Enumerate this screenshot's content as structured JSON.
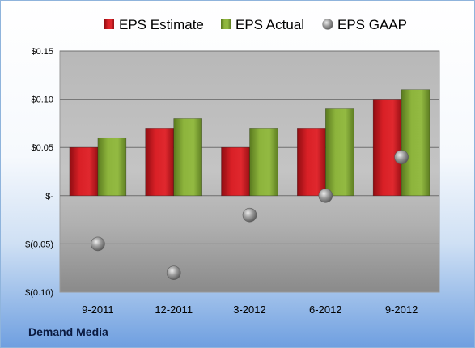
{
  "chart_data": {
    "type": "bar",
    "categories": [
      "9-2011",
      "12-2011",
      "3-2012",
      "6-2012",
      "9-2012"
    ],
    "series": [
      {
        "name": "EPS Estimate",
        "kind": "bar",
        "values": [
          0.05,
          0.07,
          0.05,
          0.07,
          0.1
        ],
        "color": "#c8171d"
      },
      {
        "name": "EPS Actual",
        "kind": "bar",
        "values": [
          0.06,
          0.08,
          0.07,
          0.09,
          0.11
        ],
        "color": "#7fa332"
      },
      {
        "name": "EPS GAAP",
        "kind": "scatter",
        "values": [
          -0.05,
          -0.08,
          -0.02,
          0.0,
          0.04
        ],
        "color": "#9a9a9a"
      }
    ],
    "ylim": [
      -0.1,
      0.15
    ],
    "yticks": [
      {
        "value": 0.15,
        "label": "$0.15"
      },
      {
        "value": 0.1,
        "label": "$0.10"
      },
      {
        "value": 0.05,
        "label": "$0.05"
      },
      {
        "value": 0.0,
        "label": "$-"
      },
      {
        "value": -0.05,
        "label": "$(0.05)"
      },
      {
        "value": -0.1,
        "label": "$(0.10)"
      }
    ],
    "grid": true,
    "legend_position": "top",
    "title": "",
    "xlabel": "",
    "ylabel": ""
  },
  "brand": "Demand Media"
}
